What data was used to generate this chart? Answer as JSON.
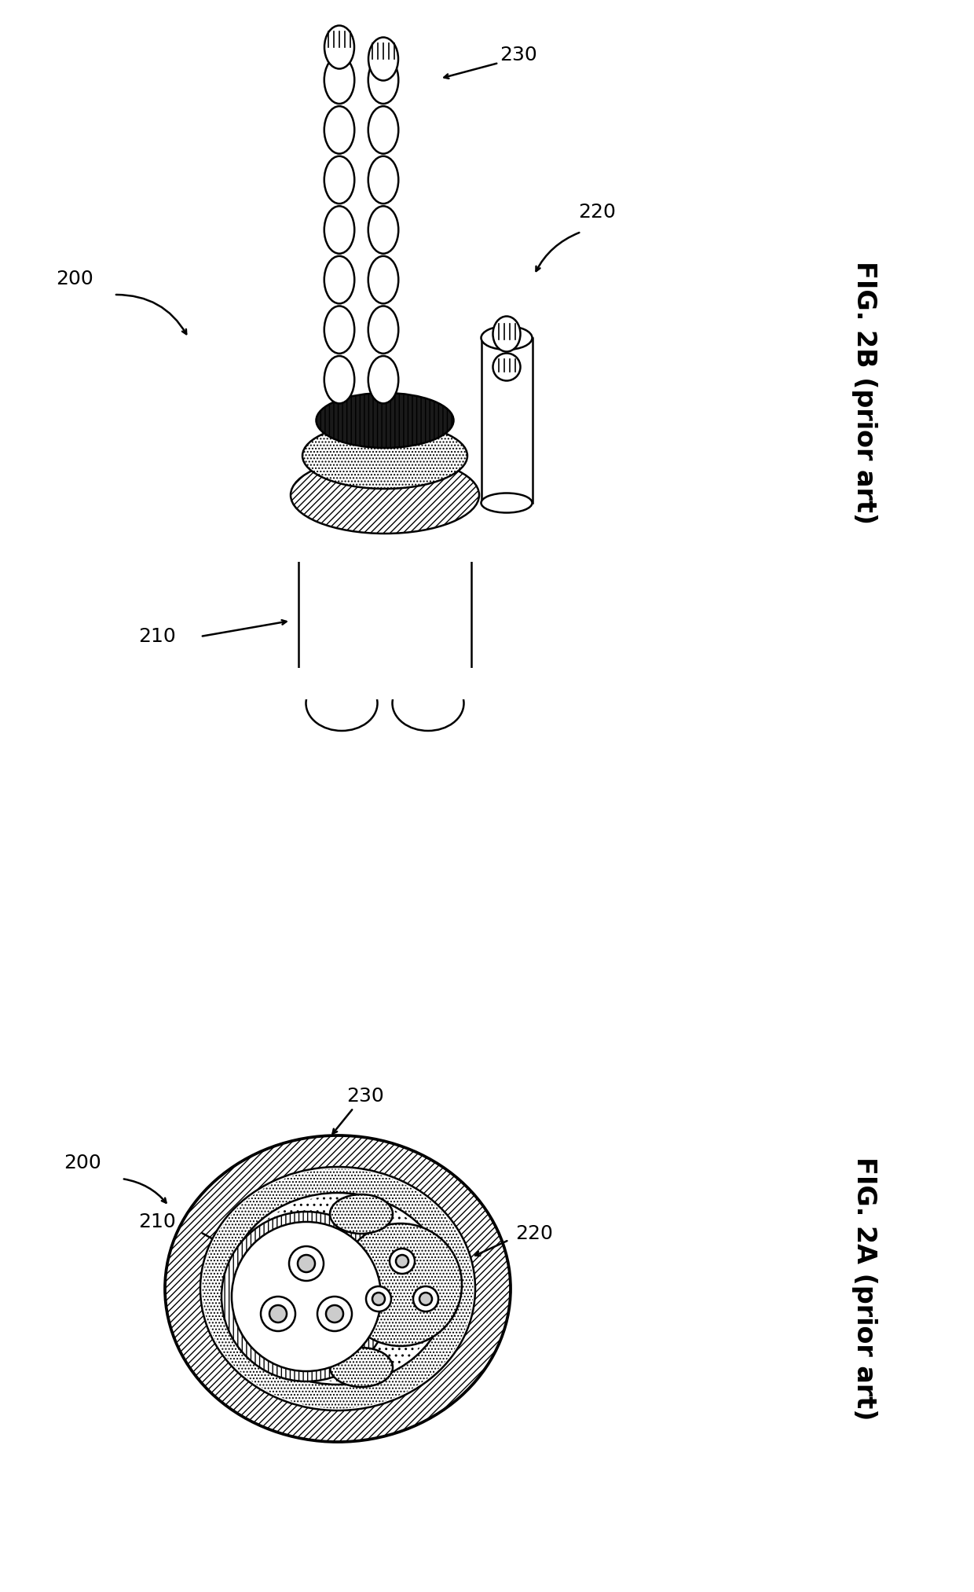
{
  "fig_width": 12.4,
  "fig_height": 20.26,
  "dpi": 100,
  "bg_color": "#ffffff",
  "lc": "#000000",
  "lw": 1.8,
  "fig2b_label": "FIG. 2B (prior art)",
  "fig2a_label": "FIG. 2A (prior art)",
  "label_200": "200",
  "label_210": "210",
  "label_220": "220",
  "label_230": "230",
  "label_fs": 18,
  "fig_label_fs": 24
}
